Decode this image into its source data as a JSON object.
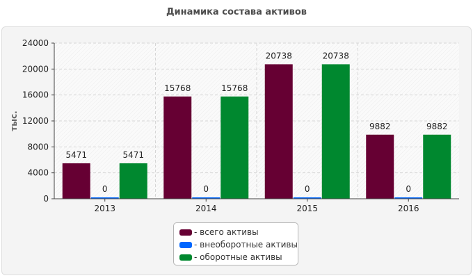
{
  "chart_data": {
    "type": "bar",
    "title": "Динамика состава активов",
    "ylabel": "тыс.",
    "xlabel": "",
    "categories": [
      "2013",
      "2014",
      "2015",
      "2016"
    ],
    "series": [
      {
        "name": "- всего активы",
        "color": "#660033",
        "values": [
          5471,
          15768,
          20738,
          9882
        ]
      },
      {
        "name": "- внеоборотные активы",
        "color": "#0066ff",
        "values": [
          0,
          0,
          0,
          0
        ]
      },
      {
        "name": "- оборотные активы",
        "color": "#00882f",
        "values": [
          5471,
          15768,
          20738,
          9882
        ]
      }
    ],
    "ylim": [
      0,
      24000
    ],
    "yticks": [
      "0",
      "4000",
      "8000",
      "12000",
      "16000",
      "20000",
      "24000"
    ],
    "grid": true,
    "legend_position": "bottom"
  }
}
